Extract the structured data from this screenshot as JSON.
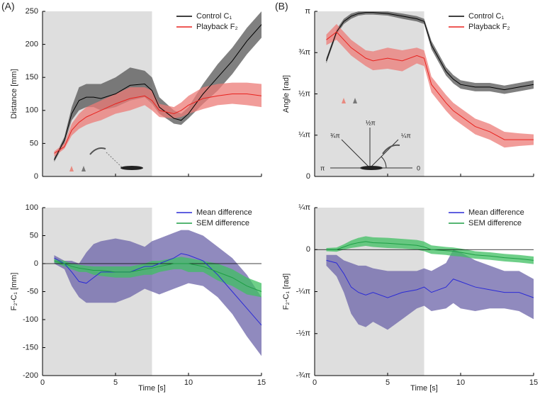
{
  "chart_data": [
    {
      "type": "line",
      "panel_label": "(A)",
      "ylabel": "Distance [mm]",
      "xlim": [
        0,
        15
      ],
      "ylim": [
        0,
        250
      ],
      "yticks": [
        0,
        50,
        100,
        150,
        200,
        250
      ],
      "xticks": [
        0,
        5,
        10,
        15
      ],
      "highlight_x": [
        0,
        7.5
      ],
      "legend": "upper right",
      "x": [
        0.8,
        1.5,
        2,
        2.5,
        3,
        3.5,
        4,
        5,
        6,
        7,
        7.5,
        8,
        9,
        9.5,
        10,
        11,
        12,
        13,
        14,
        15
      ],
      "series": [
        {
          "name": "Control C₁",
          "color": "#000000",
          "band_color": "#555555",
          "values": [
            25,
            55,
            95,
            115,
            120,
            120,
            118,
            125,
            138,
            140,
            130,
            105,
            88,
            85,
            95,
            125,
            150,
            175,
            205,
            230
          ],
          "upper": [
            28,
            60,
            105,
            135,
            140,
            140,
            140,
            150,
            165,
            160,
            150,
            120,
            100,
            95,
            105,
            140,
            170,
            195,
            225,
            250
          ],
          "lower": [
            22,
            50,
            85,
            100,
            105,
            105,
            100,
            105,
            115,
            120,
            110,
            95,
            80,
            78,
            88,
            110,
            130,
            155,
            185,
            210
          ]
        },
        {
          "name": "Playback F₂",
          "color": "#e8221e",
          "band_color": "#ec7b77",
          "values": [
            35,
            45,
            70,
            82,
            90,
            95,
            100,
            110,
            118,
            122,
            115,
            100,
            95,
            100,
            108,
            118,
            122,
            125,
            125,
            122
          ],
          "upper": [
            38,
            50,
            80,
            95,
            105,
            110,
            115,
            125,
            135,
            135,
            130,
            110,
            105,
            112,
            122,
            135,
            140,
            142,
            142,
            140
          ],
          "lower": [
            30,
            42,
            62,
            72,
            78,
            82,
            85,
            95,
            100,
            108,
            100,
            90,
            88,
            90,
            95,
            102,
            108,
            110,
            108,
            105
          ]
        }
      ]
    },
    {
      "type": "line",
      "panel_label": "(B)",
      "ylabel": "Angle [rad]",
      "xlim": [
        0,
        15
      ],
      "ylim": [
        0,
        3.1416
      ],
      "yticks": [
        0,
        {
          "value": 0.7854,
          "label": "¼π"
        },
        {
          "value": 1.5708,
          "label": "½π"
        },
        {
          "value": 2.3562,
          "label": "¾π"
        },
        {
          "value": 3.1416,
          "label": "π"
        }
      ],
      "xticks": [
        0,
        5,
        10,
        15
      ],
      "highlight_x": [
        0,
        7.5
      ],
      "legend": "upper right",
      "inset_labels": [
        "π",
        "¾π",
        "½π",
        "¼π",
        "0"
      ],
      "x": [
        0.8,
        1.5,
        2,
        2.5,
        3,
        3.5,
        4,
        5,
        6,
        7,
        7.5,
        8,
        9,
        9.5,
        10,
        11,
        12,
        13,
        14,
        15
      ],
      "series": [
        {
          "name": "Control C₁",
          "color": "#000000",
          "band_color": "#555555",
          "values": [
            2.2,
            2.75,
            2.95,
            3.05,
            3.1,
            3.12,
            3.12,
            3.1,
            3.05,
            3.0,
            2.95,
            2.5,
            2.0,
            1.85,
            1.75,
            1.7,
            1.7,
            1.65,
            1.7,
            1.75
          ],
          "upper": [
            2.25,
            2.8,
            3.0,
            3.1,
            3.14,
            3.14,
            3.14,
            3.14,
            3.1,
            3.05,
            3.0,
            2.58,
            2.08,
            1.93,
            1.83,
            1.78,
            1.78,
            1.73,
            1.78,
            1.83
          ],
          "lower": [
            2.15,
            2.7,
            2.9,
            3.0,
            3.06,
            3.08,
            3.08,
            3.06,
            3.0,
            2.95,
            2.9,
            2.42,
            1.92,
            1.77,
            1.67,
            1.62,
            1.62,
            1.57,
            1.62,
            1.67
          ]
        },
        {
          "name": "Playback F₂",
          "color": "#e8221e",
          "band_color": "#ec7b77",
          "values": [
            2.6,
            2.75,
            2.6,
            2.45,
            2.35,
            2.25,
            2.2,
            2.25,
            2.2,
            2.3,
            2.25,
            1.75,
            1.4,
            1.25,
            1.15,
            0.95,
            0.85,
            0.7,
            0.7,
            0.7
          ],
          "upper": [
            2.7,
            2.9,
            2.75,
            2.6,
            2.5,
            2.4,
            2.38,
            2.45,
            2.4,
            2.45,
            2.4,
            1.9,
            1.55,
            1.4,
            1.3,
            1.1,
            1.0,
            0.85,
            0.82,
            0.8
          ],
          "lower": [
            2.5,
            2.6,
            2.45,
            2.3,
            2.2,
            2.1,
            2.02,
            2.05,
            2.0,
            2.15,
            2.1,
            1.6,
            1.25,
            1.1,
            1.0,
            0.8,
            0.7,
            0.55,
            0.58,
            0.6
          ]
        }
      ]
    },
    {
      "type": "line",
      "ylabel": "F₂-C₁ [mm]",
      "xlabel": "Time [s]",
      "xlim": [
        0,
        15
      ],
      "ylim": [
        -200,
        100
      ],
      "yticks": [
        -200,
        -150,
        -100,
        -50,
        0,
        50,
        100
      ],
      "xticks": [
        0,
        5,
        10,
        15
      ],
      "highlight_x": [
        0,
        7.5
      ],
      "legend": "upper right",
      "x": [
        0.8,
        1.5,
        2,
        2.5,
        3,
        3.5,
        4,
        5,
        6,
        7,
        7.5,
        8,
        9,
        9.5,
        10,
        11,
        12,
        13,
        14,
        15
      ],
      "series": [
        {
          "name": "Mean difference",
          "color": "#2b2bd6",
          "band_color": "#6b63a8",
          "values": [
            10,
            0,
            -15,
            -32,
            -35,
            -25,
            -15,
            -15,
            -15,
            -5,
            -5,
            0,
            10,
            18,
            15,
            5,
            -20,
            -50,
            -80,
            -110
          ],
          "upper": [
            15,
            5,
            5,
            0,
            20,
            35,
            40,
            45,
            40,
            30,
            40,
            45,
            55,
            60,
            60,
            50,
            30,
            10,
            -20,
            -60
          ],
          "lower": [
            0,
            -10,
            -40,
            -60,
            -70,
            -70,
            -70,
            -70,
            -60,
            -45,
            -50,
            -55,
            -45,
            -40,
            -35,
            -40,
            -60,
            -90,
            -130,
            -165
          ]
        },
        {
          "name": "SEM difference",
          "color": "#1e9e45",
          "band_color": "#3fbf62",
          "values": [
            5,
            0,
            -5,
            -8,
            -10,
            -12,
            -12,
            -15,
            -15,
            -10,
            -8,
            -5,
            0,
            0,
            0,
            -5,
            -15,
            -25,
            -40,
            -50
          ],
          "upper": [
            8,
            5,
            0,
            -2,
            -4,
            -5,
            -5,
            -5,
            -5,
            0,
            5,
            5,
            10,
            12,
            10,
            5,
            0,
            -10,
            -25,
            -35
          ],
          "lower": [
            2,
            -5,
            -10,
            -15,
            -15,
            -20,
            -22,
            -25,
            -25,
            -20,
            -20,
            -15,
            -10,
            -10,
            -15,
            -15,
            -30,
            -40,
            -55,
            -60
          ]
        }
      ]
    },
    {
      "type": "line",
      "ylabel": "F₂-C₁ [rad]",
      "xlabel": "Time [s]",
      "xlim": [
        0,
        15
      ],
      "ylim": [
        -2.3562,
        0.7854
      ],
      "yticks": [
        {
          "value": -2.3562,
          "label": "-¾π"
        },
        {
          "value": -1.5708,
          "label": "-½π"
        },
        {
          "value": -0.7854,
          "label": "-¼π"
        },
        0,
        {
          "value": 0.7854,
          "label": "¼π"
        }
      ],
      "xticks": [
        0,
        5,
        10,
        15
      ],
      "highlight_x": [
        0,
        7.5
      ],
      "legend": "upper right",
      "x": [
        0.8,
        1.5,
        2,
        2.5,
        3,
        3.5,
        4,
        5,
        6,
        7,
        7.5,
        8,
        9,
        9.5,
        10,
        11,
        12,
        13,
        14,
        15
      ],
      "series": [
        {
          "name": "Mean difference",
          "color": "#2b2bd6",
          "band_color": "#6b63a8",
          "values": [
            -0.2,
            -0.25,
            -0.45,
            -0.7,
            -0.8,
            -0.85,
            -0.8,
            -0.9,
            -0.8,
            -0.75,
            -0.7,
            -0.8,
            -0.7,
            -0.55,
            -0.6,
            -0.7,
            -0.75,
            -0.8,
            -0.8,
            -0.9
          ],
          "upper": [
            -0.1,
            -0.1,
            -0.2,
            -0.25,
            -0.3,
            -0.3,
            -0.35,
            -0.4,
            -0.4,
            -0.4,
            -0.35,
            -0.4,
            -0.25,
            0,
            -0.05,
            -0.2,
            -0.3,
            -0.4,
            -0.4,
            -0.55
          ],
          "lower": [
            -0.3,
            -0.5,
            -0.8,
            -1.2,
            -1.4,
            -1.45,
            -1.35,
            -1.5,
            -1.3,
            -1.1,
            -1.05,
            -1.15,
            -1.1,
            -1.0,
            -1.1,
            -1.15,
            -1.1,
            -1.1,
            -1.15,
            -1.3
          ]
        },
        {
          "name": "SEM difference",
          "color": "#1e9e45",
          "band_color": "#3fbf62",
          "values": [
            0,
            0,
            0.05,
            0.1,
            0.13,
            0.15,
            0.13,
            0.12,
            0.1,
            0.08,
            0.05,
            0,
            -0.02,
            -0.03,
            -0.05,
            -0.1,
            -0.12,
            -0.15,
            -0.17,
            -0.2
          ],
          "upper": [
            0.03,
            0.04,
            0.1,
            0.17,
            0.22,
            0.25,
            0.23,
            0.22,
            0.2,
            0.18,
            0.15,
            0.08,
            0.05,
            0.04,
            0.02,
            -0.03,
            -0.05,
            -0.08,
            -0.1,
            -0.13
          ],
          "lower": [
            -0.03,
            -0.04,
            0,
            0.03,
            0.05,
            0.07,
            0.05,
            0.03,
            0.02,
            0,
            -0.03,
            -0.08,
            -0.1,
            -0.12,
            -0.13,
            -0.17,
            -0.19,
            -0.22,
            -0.24,
            -0.27
          ]
        }
      ]
    }
  ]
}
